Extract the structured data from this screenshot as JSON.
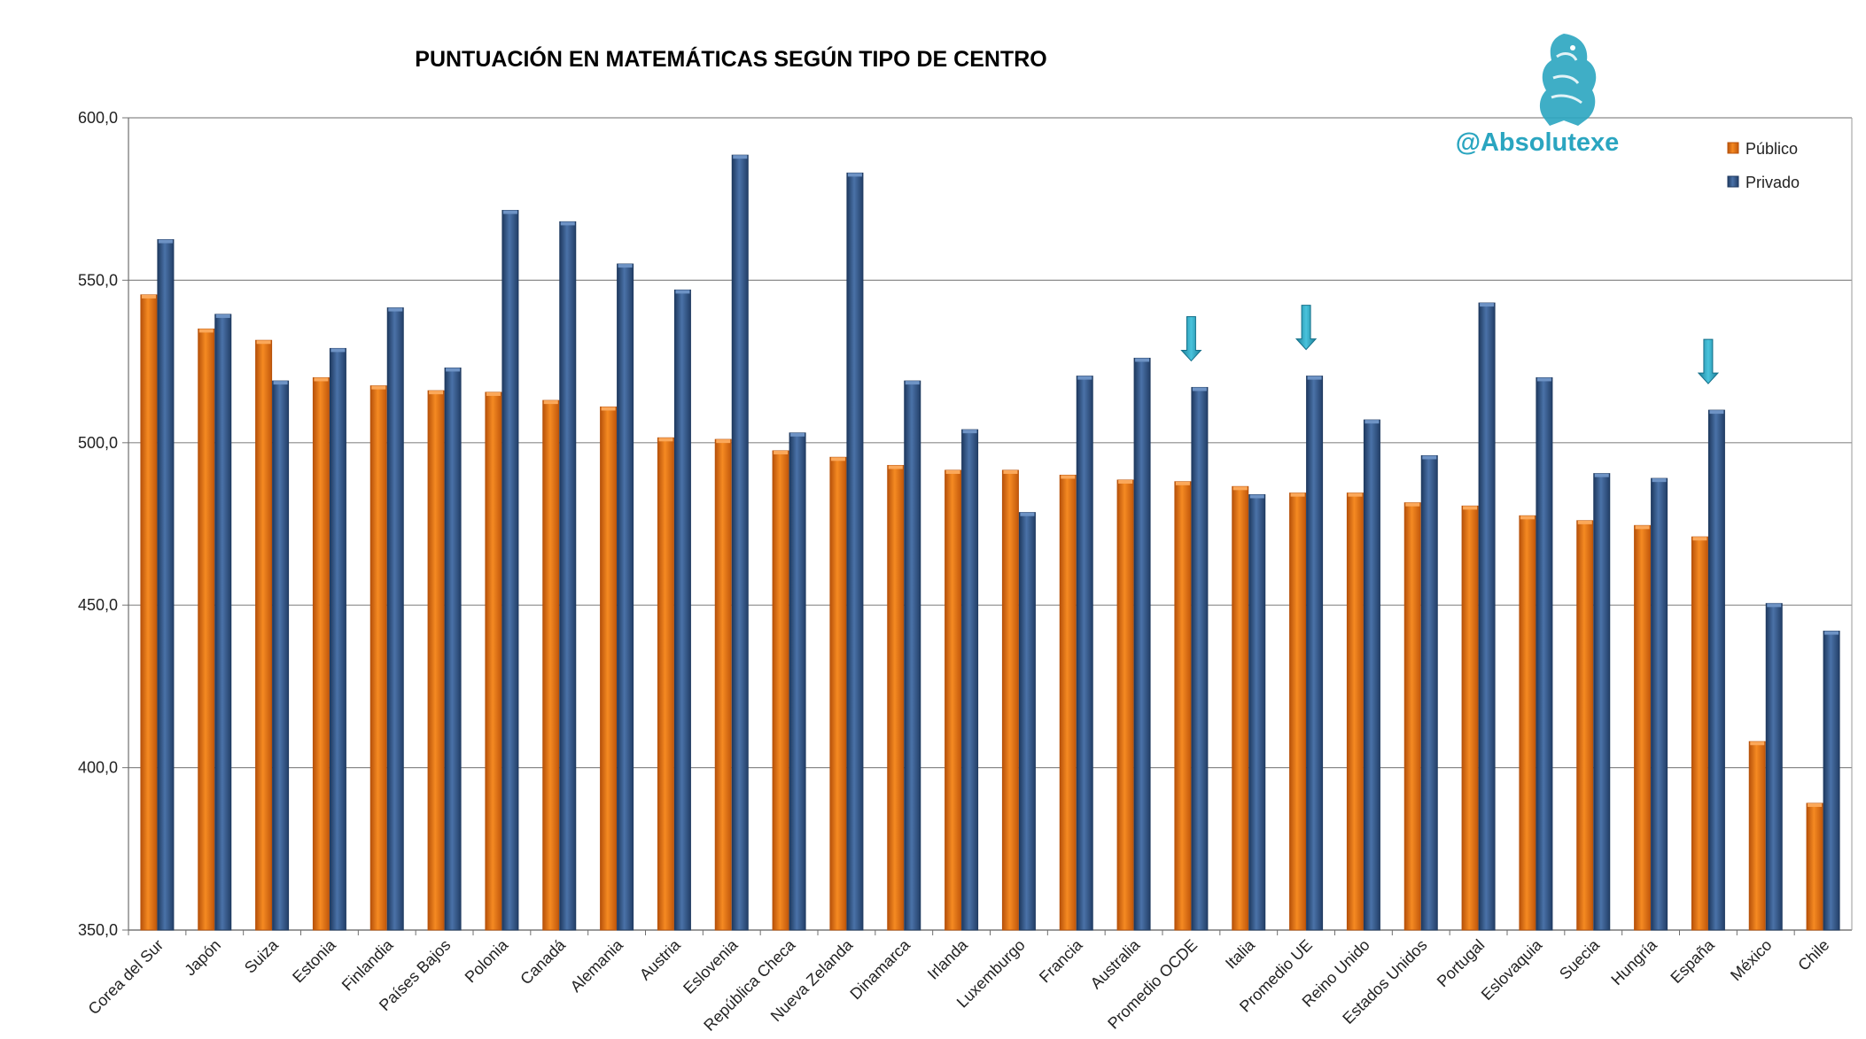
{
  "colors": {
    "public": "#F07A10",
    "public_dark": "#B8520A",
    "private": "#34598C",
    "private_dark": "#1F3A60",
    "arrow": "#2AA5C0",
    "grid": "#8A8A8A",
    "brand": "#2AA5C0"
  },
  "brand": {
    "handle": "@Absolutexe",
    "icon": "griffin-logo-icon"
  },
  "chart_data": {
    "type": "bar",
    "title": "PUNTUACIÓN EN MATEMÁTICAS SEGÚN TIPO DE CENTRO",
    "xlabel": "",
    "ylabel": "",
    "ylim": [
      350,
      600
    ],
    "yticks": [
      "350,0",
      "400,0",
      "450,0",
      "500,0",
      "550,0",
      "600,0"
    ],
    "grid": true,
    "legend_position": "top-right",
    "categories": [
      "Corea del Sur",
      "Japón",
      "Suiza",
      "Estonia",
      "Finlandia",
      "Países Bajos",
      "Polonia",
      "Canadá",
      "Alemania",
      "Austria",
      "Eslovenia",
      "República Checa",
      "Nueva Zelanda",
      "Dinamarca",
      "Irlanda",
      "Luxemburgo",
      "Francia",
      "Australia",
      "Promedio OCDE",
      "Italia",
      "Promedio UE",
      "Reino Unido",
      "Estados Unidos",
      "Portugal",
      "Eslovaquia",
      "Suecia",
      "Hungría",
      "España",
      "México",
      "Chile"
    ],
    "series": [
      {
        "name": "Público",
        "values": [
          545.5,
          535,
          531.5,
          520,
          517.5,
          516,
          515.5,
          513,
          511,
          501.5,
          501,
          497.5,
          495.5,
          493,
          491.5,
          491.5,
          490,
          488.5,
          488,
          486.5,
          484.5,
          484.5,
          481.5,
          480.5,
          477.5,
          476,
          474.5,
          471,
          408,
          389
        ]
      },
      {
        "name": "Privado",
        "values": [
          562.5,
          539.5,
          519,
          529,
          541.5,
          523,
          571.5,
          568,
          555,
          547,
          588.5,
          503,
          583,
          519,
          504,
          478.5,
          520.5,
          526,
          517,
          484,
          520.5,
          507,
          496,
          543,
          520,
          490.5,
          489,
          510,
          450.5,
          442
        ]
      }
    ],
    "highlighted_categories": [
      "Promedio OCDE",
      "Promedio UE",
      "España"
    ]
  }
}
